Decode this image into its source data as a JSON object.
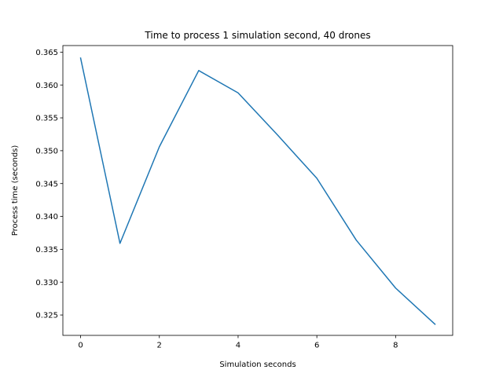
{
  "chart_data": {
    "type": "line",
    "title": "Time to process 1 simulation second, 40 drones",
    "xlabel": "Simulation seconds",
    "ylabel": "Process time (seconds)",
    "xlim": [
      -0.45,
      9.45
    ],
    "ylim": [
      0.3219,
      0.366
    ],
    "xticks": [
      0,
      2,
      4,
      6,
      8
    ],
    "yticks": [
      0.325,
      0.33,
      0.335,
      0.34,
      0.345,
      0.35,
      0.355,
      0.36,
      0.365
    ],
    "grid": false,
    "series": [
      {
        "color": "#1f77b4",
        "x": [
          0,
          1,
          2,
          3,
          4,
          5,
          6,
          7,
          8,
          9
        ],
        "y": [
          0.3641,
          0.3359,
          0.3506,
          0.3622,
          0.3588,
          0.3524,
          0.3458,
          0.3364,
          0.3291,
          0.3236
        ]
      }
    ]
  }
}
